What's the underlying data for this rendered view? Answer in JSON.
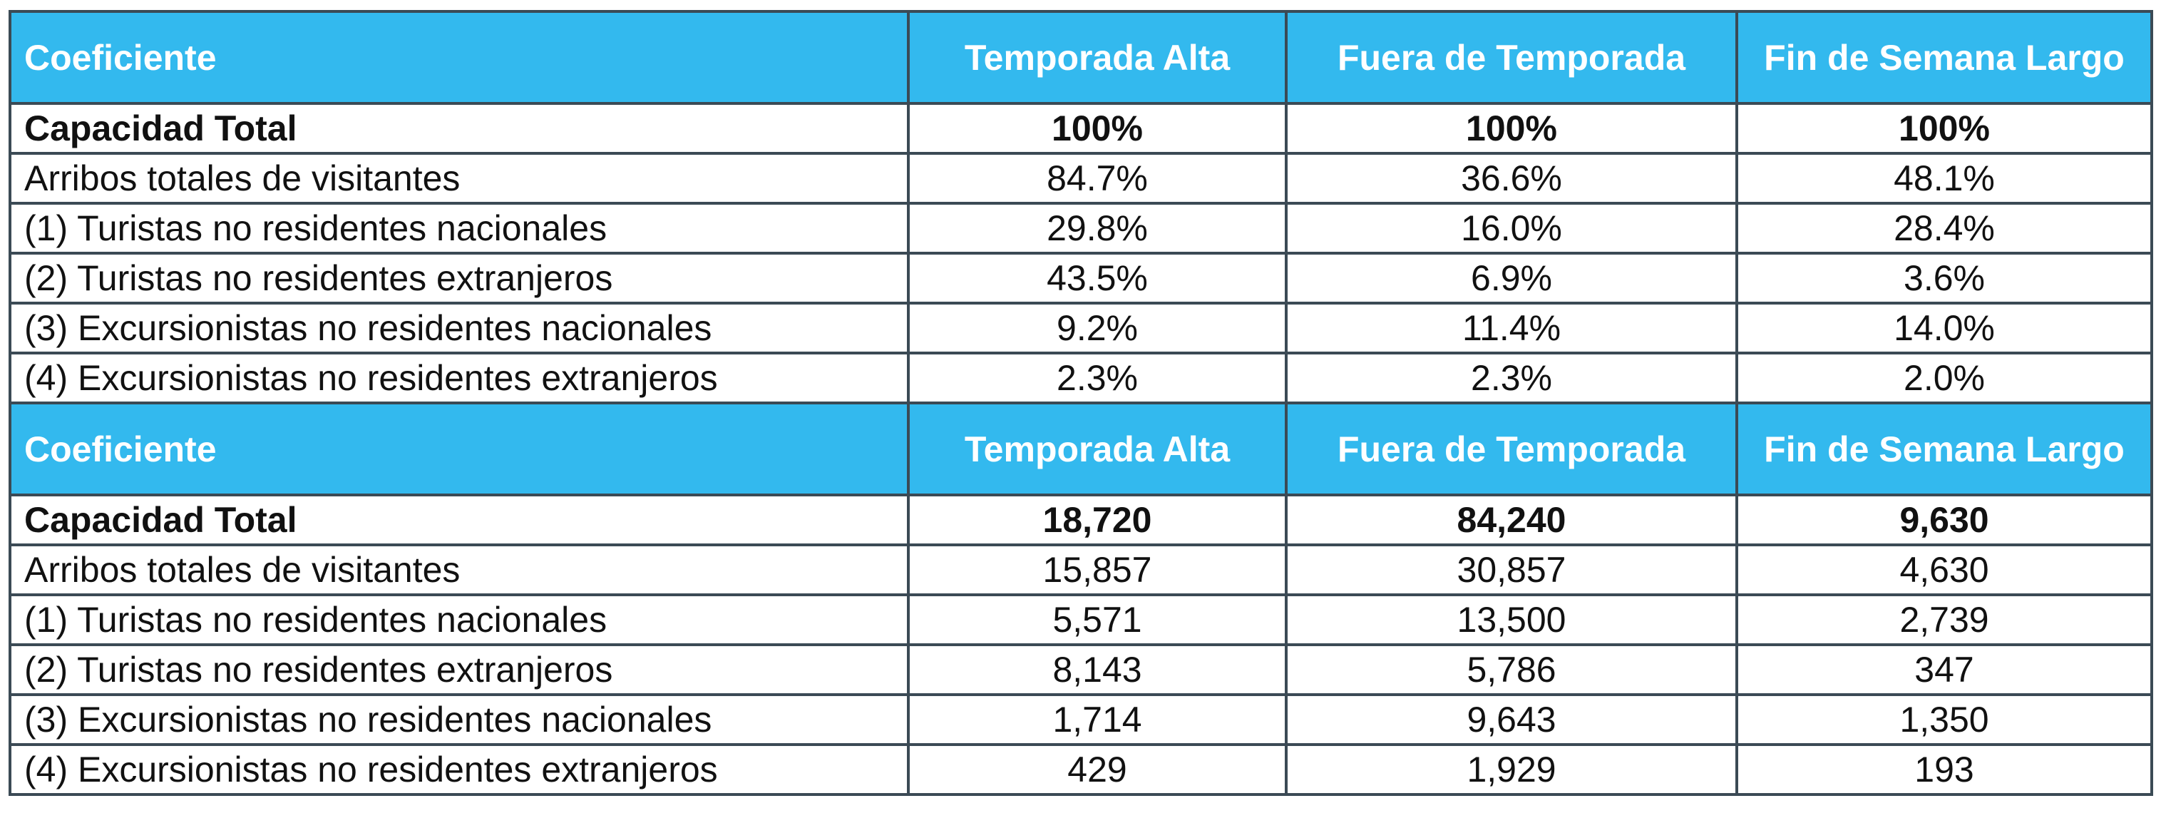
{
  "colors": {
    "header_bg": "#33b9ee",
    "header_text": "#ffffff",
    "border": "#3b4a55",
    "text": "#111111"
  },
  "sections": [
    {
      "headers": [
        "Coeficiente",
        "Temporada Alta",
        "Fuera de Temporada",
        "Fin de Semana Largo"
      ],
      "rows": [
        {
          "label": "Capacidad Total",
          "alta": "100%",
          "fuera": "100%",
          "fin": "100%"
        },
        {
          "label": "Arribos totales de visitantes",
          "alta": "84.7%",
          "fuera": "36.6%",
          "fin": "48.1%"
        },
        {
          "label": "(1) Turistas no residentes nacionales",
          "alta": "29.8%",
          "fuera": "16.0%",
          "fin": "28.4%"
        },
        {
          "label": "(2) Turistas no residentes extranjeros",
          "alta": "43.5%",
          "fuera": "6.9%",
          "fin": "3.6%"
        },
        {
          "label": "(3) Excursionistas no residentes nacionales",
          "alta": "9.2%",
          "fuera": "11.4%",
          "fin": "14.0%"
        },
        {
          "label": "(4) Excursionistas no residentes extranjeros",
          "alta": "2.3%",
          "fuera": "2.3%",
          "fin": "2.0%"
        }
      ]
    },
    {
      "headers": [
        "Coeficiente",
        "Temporada Alta",
        "Fuera de Temporada",
        "Fin de Semana Largo"
      ],
      "rows": [
        {
          "label": "Capacidad Total",
          "alta": "18,720",
          "fuera": "84,240",
          "fin": "9,630"
        },
        {
          "label": "Arribos totales de visitantes",
          "alta": "15,857",
          "fuera": "30,857",
          "fin": "4,630"
        },
        {
          "label": "(1) Turistas no residentes nacionales",
          "alta": "5,571",
          "fuera": "13,500",
          "fin": "2,739"
        },
        {
          "label": "(2) Turistas no residentes extranjeros",
          "alta": "8,143",
          "fuera": "5,786",
          "fin": "347"
        },
        {
          "label": "(3) Excursionistas no residentes nacionales",
          "alta": "1,714",
          "fuera": "9,643",
          "fin": "1,350"
        },
        {
          "label": "(4) Excursionistas no residentes extranjeros",
          "alta": "429",
          "fuera": "1,929",
          "fin": "193"
        }
      ]
    }
  ]
}
